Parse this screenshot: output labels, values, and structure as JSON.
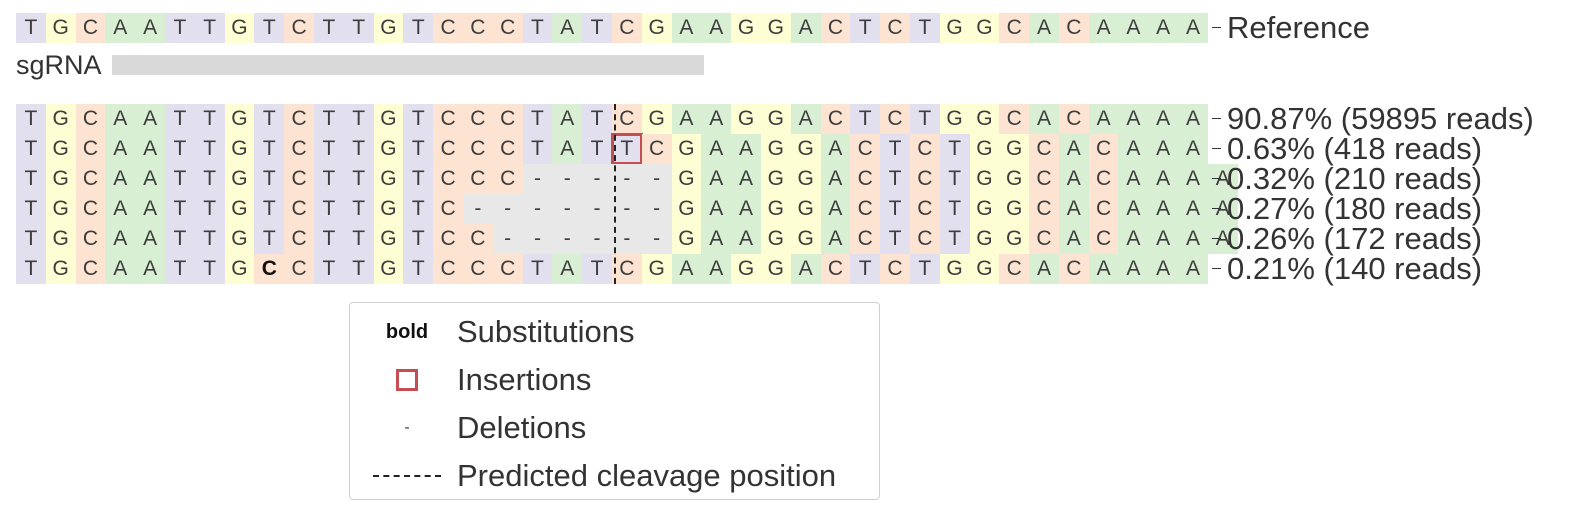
{
  "colors": {
    "T": "#e2dfee",
    "G": "#fefed4",
    "C": "#fde3d1",
    "A": "#d8efd4",
    "deletion": "#e8e8e8",
    "insertion_box": "#c44e52",
    "cut_line": "#222222",
    "sgrna_bar": "#d9d9d9"
  },
  "reference": {
    "label": "Reference",
    "sequence": "TGCAATTGTCTTGTCCCTATCGAAGGACTCTGGCACAAAA"
  },
  "sgrna": {
    "label": "sgRNA"
  },
  "alleles": [
    {
      "sequence": "TGCAATTGTCTTGTCCCTATCGAAGGACTCTGGCACAAAA",
      "label": "90.87% (59895 reads)",
      "insertions": [],
      "substitutions": []
    },
    {
      "sequence": "TGCAATTGTCTTGTCCCTATTCGAAGGACTCTGGCACAAA",
      "label": "0.63% (418 reads)",
      "insertions": [
        20
      ],
      "substitutions": []
    },
    {
      "sequence": "TGCAATTGTCTTGTCCC-----GAAGGACTCTGGCACAAAA",
      "label": "0.32% (210 reads)",
      "insertions": [],
      "substitutions": []
    },
    {
      "sequence": "TGCAATTGTCTTGTC-------GAAGGACTCTGGCACAAAA",
      "label": "0.27% (180 reads)",
      "insertions": [],
      "substitutions": []
    },
    {
      "sequence": "TGCAATTGTCTTGTCC------GAAGGACTCTGGCACAAAA",
      "label": "0.26% (172 reads)",
      "insertions": [],
      "substitutions": []
    },
    {
      "sequence": "TGCAATTGCCTTGTCCCTATCGAAGGACTCTGGCACAAAA",
      "label": "0.21% (140 reads)",
      "insertions": [],
      "substitutions": [
        8
      ]
    }
  ],
  "legend": {
    "substitutions_symbol": "bold",
    "substitutions_label": "Substitutions",
    "insertions_label": "Insertions",
    "deletions_symbol": "-",
    "deletions_label": "Deletions",
    "cleavage_label": "Predicted cleavage position"
  }
}
